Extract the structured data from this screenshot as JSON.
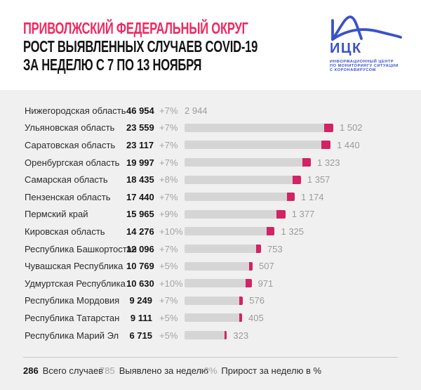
{
  "header": {
    "title": "ПРИВОЛЖСКИЙ ФЕДЕРАЛЬНЫЙ ОКРУГ",
    "subtitle_line1": "РОСТ ВЫЯВЛЕННЫХ СЛУЧАЕВ COVID-19",
    "subtitle_line2": "ЗА НЕДЕЛЮ С 7 ПО 13 НОЯБРЯ"
  },
  "logo": {
    "abbr": "ИЦК",
    "line1": "ИНФОРМАЦИОННЫЙ ЦЕНТР",
    "line2": "ПО МОНИТОРИНГУ СИТУАЦИИ",
    "line3": "С КОРОНАВИРУСОМ",
    "color": "#3a52c8"
  },
  "colors": {
    "accent_pink": "#ef2a62",
    "bar_weekly_pink": "#d22364",
    "bar_total_gray": "#d5d5d6",
    "panel_bg": "#f0f0f0",
    "text_dark": "#141414",
    "text_gray": "#a3a3a3"
  },
  "chart_data": {
    "type": "bar",
    "title": "Рост выявленных случаев COVID-19 за неделю с 7 по 13 ноября, Приволжский федеральный округ",
    "legend_position": "bottom",
    "grid": false,
    "bar_colors": {
      "total": "#d5d5d6",
      "weekly": "#d22364"
    },
    "rows": [
      {
        "region": "Нижегородская область",
        "total": 46954,
        "total_label": "46 954",
        "growth_pct": "+7%",
        "weekly": 2944,
        "weekly_label": "2 944",
        "bar": false
      },
      {
        "region": "Ульяновская область",
        "total": 23559,
        "total_label": "23 559",
        "growth_pct": "+7%",
        "weekly": 1502,
        "weekly_label": "1 502",
        "bar": true
      },
      {
        "region": "Саратовская область",
        "total": 23117,
        "total_label": "23 117",
        "growth_pct": "+7%",
        "weekly": 1440,
        "weekly_label": "1 440",
        "bar": true
      },
      {
        "region": "Оренбургская область",
        "total": 19997,
        "total_label": "19 997",
        "growth_pct": "+7%",
        "weekly": 1323,
        "weekly_label": "1 323",
        "bar": true
      },
      {
        "region": "Самарская область",
        "total": 18435,
        "total_label": "18 435",
        "growth_pct": "+8%",
        "weekly": 1357,
        "weekly_label": "1 357",
        "bar": true
      },
      {
        "region": "Пензенская область",
        "total": 17440,
        "total_label": "17 440",
        "growth_pct": "+7%",
        "weekly": 1174,
        "weekly_label": "1 174",
        "bar": true
      },
      {
        "region": "Пермский край",
        "total": 15965,
        "total_label": "15 965",
        "growth_pct": "+9%",
        "weekly": 1377,
        "weekly_label": "1 377",
        "bar": true
      },
      {
        "region": "Кировская область",
        "total": 14276,
        "total_label": "14 276",
        "growth_pct": "+10%",
        "weekly": 1325,
        "weekly_label": "1 325",
        "bar": true
      },
      {
        "region": "Республика Башкортостан",
        "total": 12096,
        "total_label": "12 096",
        "growth_pct": "+7%",
        "weekly": 753,
        "weekly_label": "753",
        "bar": true
      },
      {
        "region": "Чувашская Республика",
        "total": 10769,
        "total_label": "10 769",
        "growth_pct": "+5%",
        "weekly": 507,
        "weekly_label": "507",
        "bar": true
      },
      {
        "region": "Удмуртская Республика",
        "total": 10630,
        "total_label": "10 630",
        "growth_pct": "+10%",
        "weekly": 971,
        "weekly_label": "971",
        "bar": true
      },
      {
        "region": "Республика Мордовия",
        "total": 9249,
        "total_label": "9 249",
        "growth_pct": "+7%",
        "weekly": 576,
        "weekly_label": "576",
        "bar": true
      },
      {
        "region": "Республика Татарстан",
        "total": 9111,
        "total_label": "9 111",
        "growth_pct": "+5%",
        "weekly": 405,
        "weekly_label": "405",
        "bar": true
      },
      {
        "region": "Республика Марий Эл",
        "total": 6715,
        "total_label": "6 715",
        "growth_pct": "+5%",
        "weekly": 323,
        "weekly_label": "323",
        "bar": true
      }
    ]
  },
  "legend": {
    "items": [
      {
        "value": "286",
        "label": "Всего случаев",
        "style": "bold"
      },
      {
        "value": "785",
        "label": "Выявлено за неделю",
        "style": "gray"
      },
      {
        "value": "+8%",
        "label": "Прирост за неделю в %",
        "style": "gray"
      }
    ]
  }
}
